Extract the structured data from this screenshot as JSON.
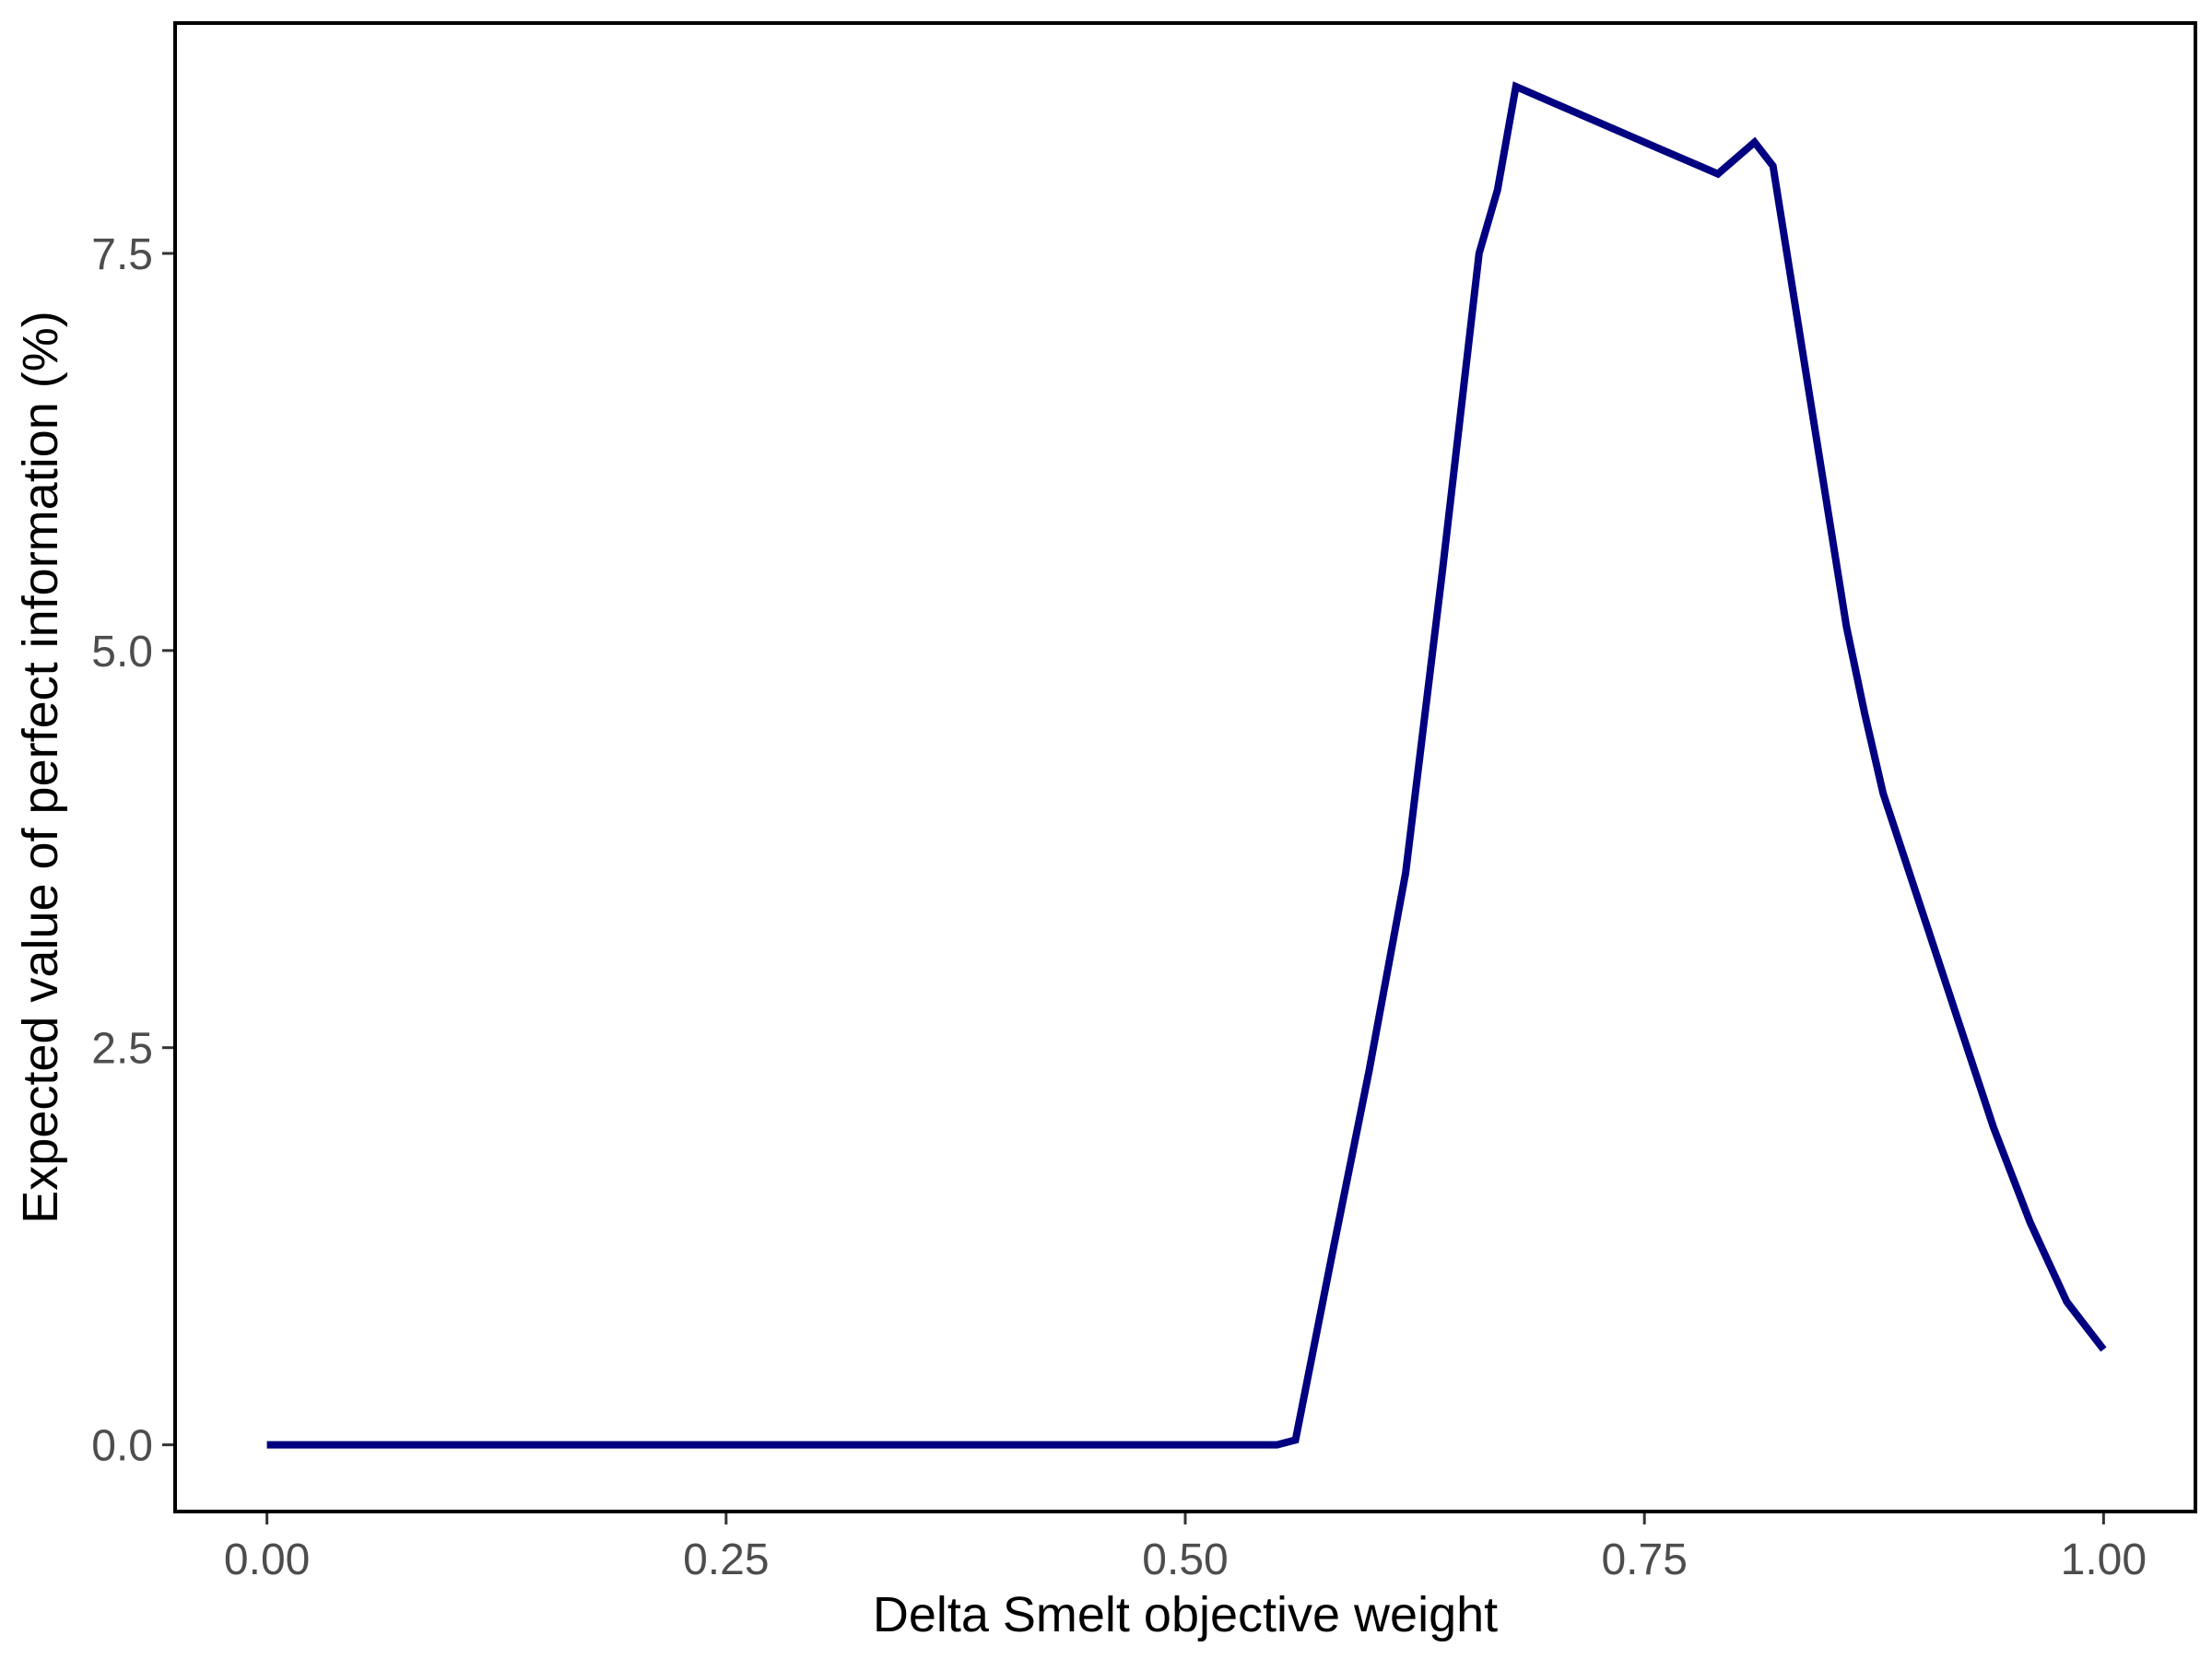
{
  "chart_data": {
    "type": "line",
    "title": "",
    "xlabel": "Delta Smelt objective weight",
    "ylabel": "Expected value of perfect information (%)",
    "xlim": [
      -0.05,
      1.05
    ],
    "ylim": [
      -0.42,
      8.95
    ],
    "x_ticks": [
      0.0,
      0.25,
      0.5,
      0.75,
      1.0
    ],
    "x_tick_labels": [
      "0.00",
      "0.25",
      "0.50",
      "0.75",
      "1.00"
    ],
    "y_ticks": [
      0.0,
      2.5,
      5.0,
      7.5
    ],
    "y_tick_labels": [
      "0.0",
      "2.5",
      "5.0",
      "7.5"
    ],
    "grid": false,
    "line_color": "#000080",
    "series": [
      {
        "x": [
          0.0,
          0.01,
          0.05,
          0.1,
          0.15,
          0.2,
          0.25,
          0.3,
          0.35,
          0.4,
          0.45,
          0.5,
          0.55,
          0.56,
          0.58,
          0.6,
          0.62,
          0.64,
          0.66,
          0.67,
          0.68,
          0.7,
          0.72,
          0.74,
          0.76,
          0.78,
          0.79,
          0.81,
          0.82,
          0.84,
          0.86,
          0.87,
          0.88,
          0.9,
          0.92,
          0.94,
          0.95,
          0.96,
          0.97,
          0.98,
          0.99,
          1.0
        ],
        "y": [
          0.0,
          0.0,
          0.0,
          0.0,
          0.0,
          0.0,
          0.0,
          0.0,
          0.0,
          0.0,
          0.0,
          0.0,
          0.0,
          0.03,
          1.2,
          2.35,
          3.6,
          5.5,
          7.5,
          7.9,
          8.55,
          8.45,
          8.35,
          8.25,
          8.15,
          8.05,
          8.0,
          8.2,
          8.05,
          6.6,
          5.15,
          4.6,
          4.1,
          3.4,
          2.7,
          2.0,
          1.7,
          1.4,
          1.15,
          0.9,
          0.75,
          0.6
        ]
      }
    ]
  }
}
